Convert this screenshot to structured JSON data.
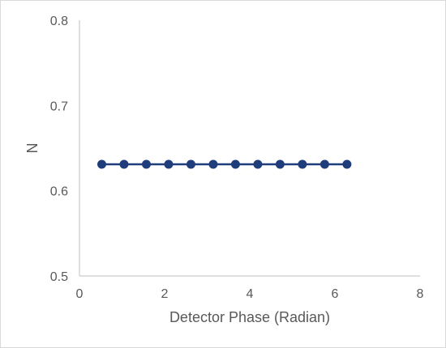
{
  "chart_data": {
    "type": "line",
    "title": "",
    "xlabel": "Detector Phase (Radian)",
    "ylabel": "N",
    "xlim": [
      0,
      8
    ],
    "ylim": [
      0.5,
      0.8
    ],
    "x_ticks": [
      0,
      2,
      4,
      6,
      8
    ],
    "y_ticks": [
      0.5,
      0.6,
      0.7,
      0.8
    ],
    "grid": false,
    "legend": "none",
    "series": [
      {
        "color": "#1f3d7a",
        "marker": "circle",
        "x": [
          0.524,
          1.047,
          1.571,
          2.094,
          2.618,
          3.142,
          3.665,
          4.189,
          4.712,
          5.236,
          5.76,
          6.283
        ],
        "y": [
          0.631,
          0.631,
          0.631,
          0.631,
          0.631,
          0.631,
          0.631,
          0.631,
          0.631,
          0.631,
          0.631,
          0.631
        ]
      }
    ]
  }
}
